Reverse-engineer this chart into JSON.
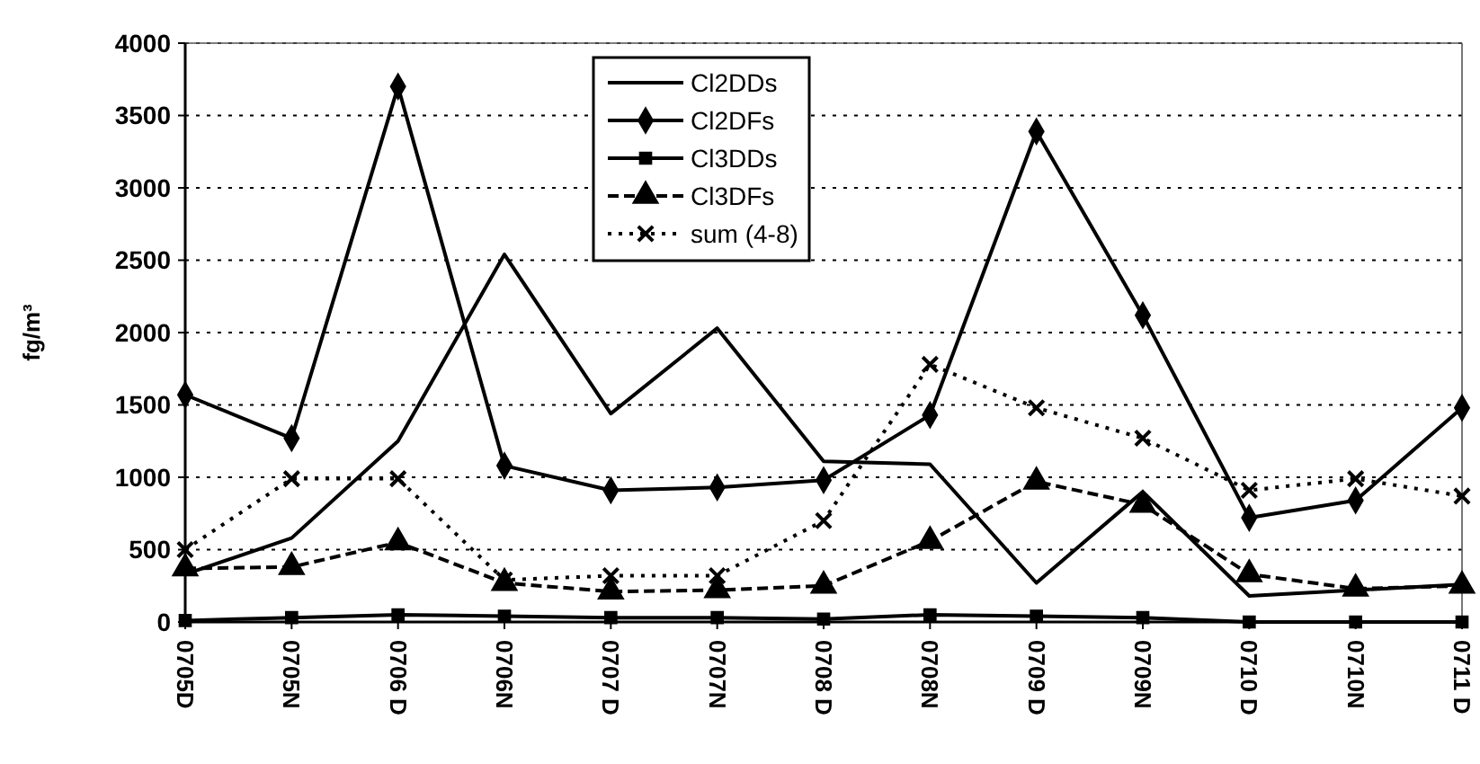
{
  "chart_data": {
    "type": "line",
    "ylabel": "fg/m³",
    "categories": [
      "0705D",
      "0705N",
      "0706 D",
      "0706N",
      "0707 D",
      "0707N",
      "0708 D",
      "0708N",
      "0709 D",
      "0709N",
      "0710 D",
      "0710N",
      "0711 D"
    ],
    "ylim": [
      0,
      4000
    ],
    "yticks": [
      0,
      500,
      1000,
      1500,
      2000,
      2500,
      3000,
      3500,
      4000
    ],
    "grid": "y",
    "legend": "top",
    "tick_labels": "xy",
    "series": [
      {
        "name": "Cl2DDs",
        "color": "#000000",
        "marker": "none",
        "line_style": "solid",
        "values": [
          330,
          580,
          1250,
          2540,
          1440,
          2030,
          1110,
          1090,
          270,
          900,
          180,
          220,
          260
        ]
      },
      {
        "name": "Cl2DFs",
        "color": "#000000",
        "marker": "diamond",
        "line_style": "solid",
        "values": [
          1570,
          1270,
          3700,
          1080,
          910,
          930,
          980,
          1430,
          3390,
          2120,
          720,
          840,
          1480
        ]
      },
      {
        "name": "Cl3DDs",
        "color": "#000000",
        "marker": "square",
        "line_style": "solid",
        "values": [
          10,
          30,
          50,
          40,
          30,
          30,
          20,
          50,
          40,
          30,
          0,
          0,
          0
        ]
      },
      {
        "name": "Cl3DFs",
        "color": "#000000",
        "marker": "triangle",
        "line_style": "dashed",
        "values": [
          370,
          380,
          550,
          270,
          210,
          220,
          250,
          560,
          970,
          810,
          330,
          230,
          250
        ]
      },
      {
        "name": "sum (4-8)",
        "color": "#000000",
        "marker": "cross",
        "line_style": "dotted",
        "values": [
          500,
          990,
          990,
          290,
          320,
          320,
          700,
          1780,
          1480,
          1270,
          910,
          990,
          870
        ]
      }
    ]
  }
}
